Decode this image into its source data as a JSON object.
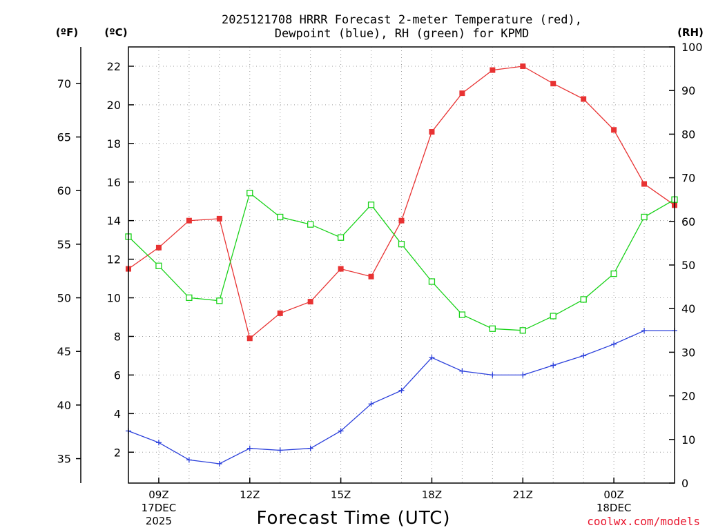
{
  "chart_data": {
    "type": "line",
    "title_line1": "2025121708 HRRR Forecast 2-meter Temperature (red),",
    "title_line2": "Dewpoint (blue), RH (green) for KPMD",
    "xlabel": "Forecast Time (UTC)",
    "credit": "coolwx.com/models",
    "units": {
      "fahrenheit": "(ºF)",
      "celsius": "(ºC)",
      "rh": "(RH)"
    },
    "x_hours": [
      8,
      9,
      10,
      11,
      12,
      13,
      14,
      15,
      16,
      17,
      18,
      19,
      20,
      21,
      22,
      23,
      24,
      25,
      26
    ],
    "xlim": [
      8,
      26
    ],
    "x_ticks": [
      {
        "hour": 9,
        "label": "09Z",
        "sub1": "17DEC",
        "sub2": "2025"
      },
      {
        "hour": 12,
        "label": "12Z",
        "sub1": "",
        "sub2": ""
      },
      {
        "hour": 15,
        "label": "15Z",
        "sub1": "",
        "sub2": ""
      },
      {
        "hour": 18,
        "label": "18Z",
        "sub1": "",
        "sub2": ""
      },
      {
        "hour": 21,
        "label": "21Z",
        "sub1": "",
        "sub2": ""
      },
      {
        "hour": 24,
        "label": "00Z",
        "sub1": "18DEC",
        "sub2": ""
      }
    ],
    "celsius_axis": {
      "ylim": [
        0.4,
        23.0
      ],
      "ticks": [
        2,
        4,
        6,
        8,
        10,
        12,
        14,
        16,
        18,
        20,
        22
      ]
    },
    "fahrenheit_axis": {
      "ticks": [
        35,
        40,
        45,
        50,
        55,
        60,
        65,
        70
      ]
    },
    "rh_axis": {
      "ylim": [
        0,
        100
      ],
      "ticks": [
        0,
        10,
        20,
        30,
        40,
        50,
        60,
        70,
        80,
        90,
        100
      ]
    },
    "series": [
      {
        "name": "Temperature",
        "axis": "celsius",
        "color": "#e83232",
        "marker": "filled-square",
        "values": [
          11.5,
          12.6,
          14.0,
          14.1,
          7.9,
          9.2,
          9.8,
          11.5,
          11.1,
          14.0,
          18.6,
          20.6,
          21.8,
          22.0,
          21.1,
          20.3,
          18.7,
          15.9,
          14.8
        ]
      },
      {
        "name": "Dewpoint",
        "axis": "celsius",
        "color": "#2a3fdb",
        "marker": "plus",
        "values": [
          3.1,
          2.5,
          1.6,
          1.4,
          2.2,
          2.1,
          2.2,
          3.1,
          4.5,
          5.2,
          6.9,
          6.2,
          6.0,
          6.0,
          6.5,
          7.0,
          7.6,
          8.3,
          8.3
        ]
      },
      {
        "name": "RH",
        "axis": "rh",
        "color": "#19d219",
        "marker": "open-square",
        "values": [
          56.5,
          49.8,
          42.5,
          41.8,
          66.5,
          61.0,
          59.3,
          56.3,
          63.8,
          54.8,
          46.2,
          38.6,
          35.4,
          35.0,
          38.3,
          42.1,
          48.0,
          61.0,
          65.0
        ]
      }
    ]
  }
}
